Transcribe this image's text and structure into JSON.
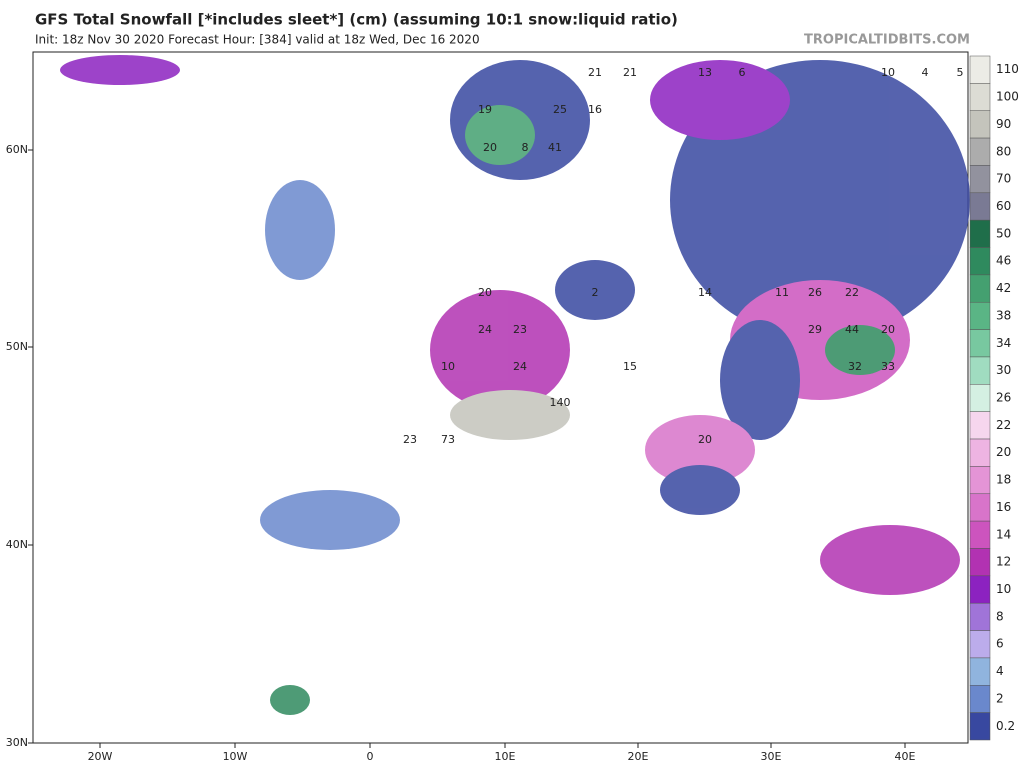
{
  "header": {
    "title": "GFS Total Snowfall [*includes sleet*] (cm) (assuming 10:1 snow:liquid ratio)",
    "subtitle": "Init: 18z Nov 30 2020   Forecast Hour: [384]   valid at 18z Wed, Dec 16 2020",
    "brand": "TROPICALTIDBITS.COM"
  },
  "axes": {
    "latitudes": [
      "60N",
      "50N",
      "40N",
      "30N"
    ],
    "longitudes": [
      "20W",
      "10W",
      "0",
      "10E",
      "20E",
      "30E",
      "40E"
    ]
  },
  "legend": {
    "levels": [
      110,
      100,
      90,
      80,
      70,
      60,
      50,
      46,
      42,
      38,
      34,
      30,
      26,
      22,
      20,
      18,
      16,
      14,
      12,
      10,
      8,
      6,
      4,
      2,
      0.2
    ],
    "colors": [
      "#ececE6",
      "#dcdcd4",
      "#c4c4bc",
      "#acacac",
      "#92929e",
      "#7a7a94",
      "#1f6e4a",
      "#2f8a5e",
      "#44a070",
      "#5ab585",
      "#78c8a0",
      "#a0dcc0",
      "#d4f0e2",
      "#f6d6ee",
      "#eeb4e2",
      "#e494d6",
      "#d874ca",
      "#cc54be",
      "#b232b2",
      "#8c22c0",
      "#a074d8",
      "#bcaceb",
      "#90b4de",
      "#6a88cc",
      "#3848a0"
    ]
  },
  "map_labels": [
    21,
    21,
    13,
    6,
    10,
    4,
    5,
    19,
    25,
    16,
    20,
    8,
    41,
    20,
    2,
    14,
    11,
    26,
    22,
    24,
    23,
    29,
    44,
    20,
    24,
    15,
    32,
    33,
    140,
    20,
    23,
    73,
    10
  ]
}
